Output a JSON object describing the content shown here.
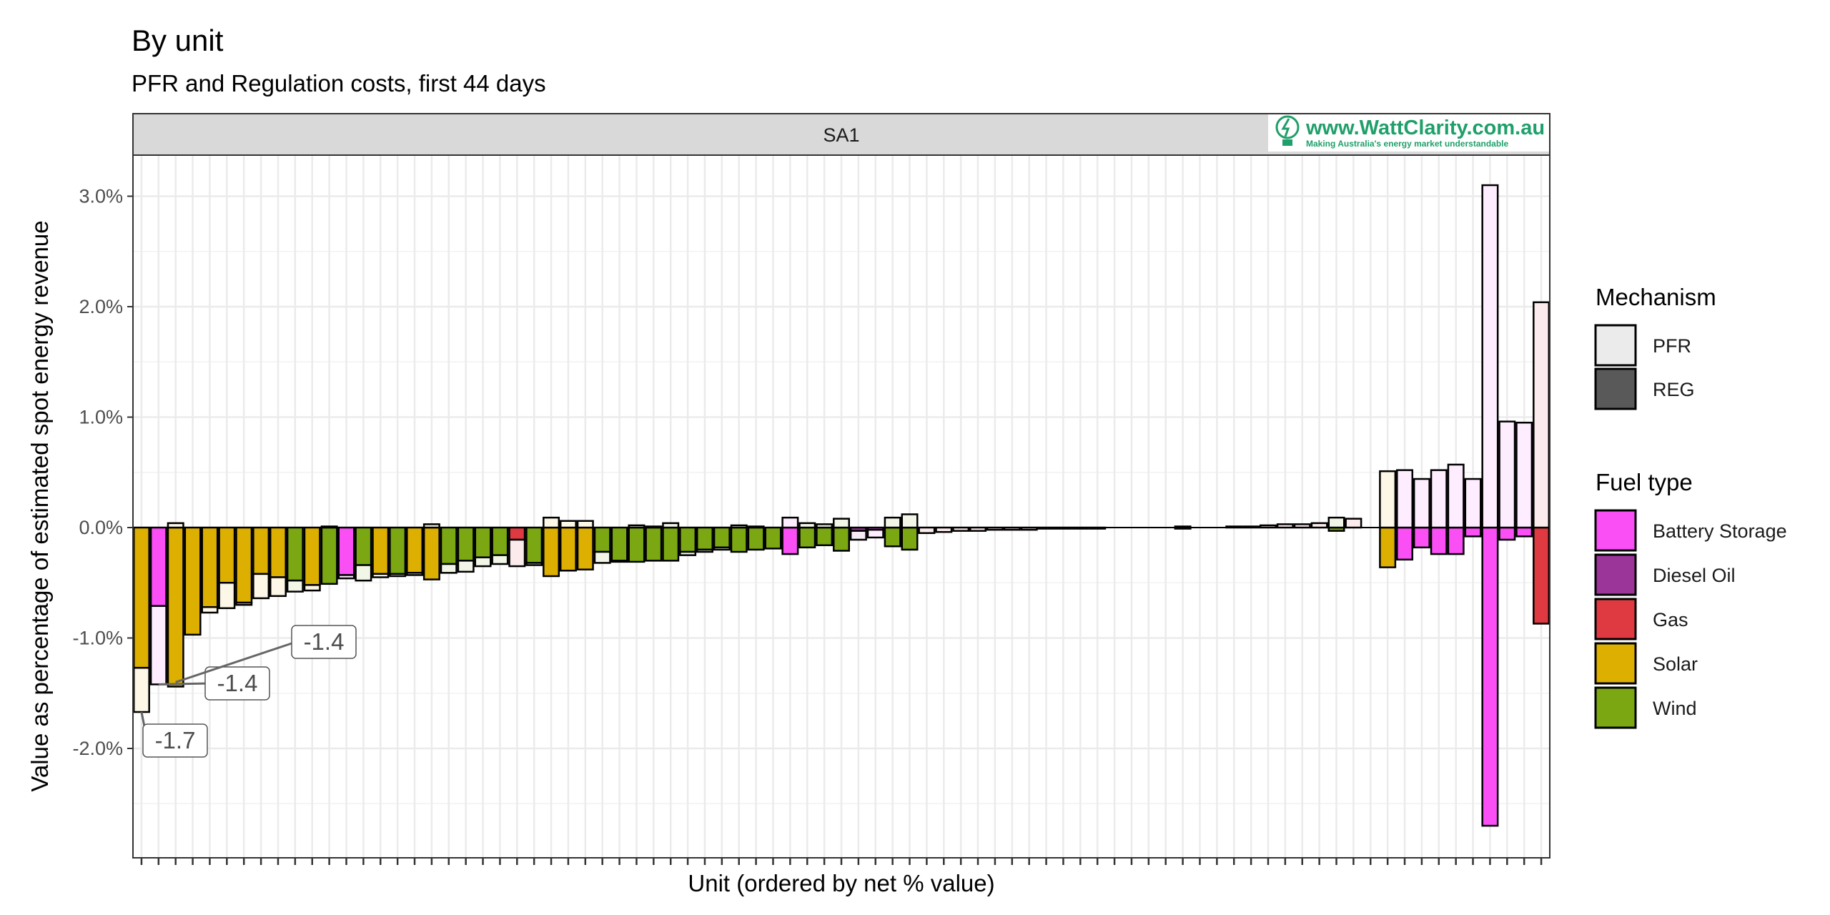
{
  "header": {
    "title": "By unit",
    "subtitle": "PFR and Regulation costs, first 44 days"
  },
  "facet": {
    "label": "SA1"
  },
  "logo": {
    "url_text": "www.WattClarity.com.au",
    "tagline": "Making Australia's energy market understandable"
  },
  "legend": {
    "mechanism_title": "Mechanism",
    "mechanism_items": [
      {
        "label": "PFR",
        "color": "#ebebeb"
      },
      {
        "label": "REG",
        "color": "#595959"
      }
    ],
    "fuel_title": "Fuel type",
    "fuel_items": [
      {
        "key": "battery",
        "label": "Battery Storage",
        "color": "#f94ff5"
      },
      {
        "key": "diesel",
        "label": "Diesel Oil",
        "color": "#9c3599"
      },
      {
        "key": "gas",
        "label": "Gas",
        "color": "#df3a41"
      },
      {
        "key": "solar",
        "label": "Solar",
        "color": "#dcaf00"
      },
      {
        "key": "wind",
        "label": "Wind",
        "color": "#7ba712"
      }
    ]
  },
  "chart_data": {
    "type": "bar",
    "title": "By unit",
    "subtitle": "PFR and Regulation costs, first 44 days",
    "facet": "SA1",
    "xlabel": "Unit (ordered by net % value)",
    "ylabel": "Value as percentage of estimated spot energy revenue",
    "ylim": [
      -3.0,
      3.3
    ],
    "y_ticks": [
      3.0,
      2.0,
      1.0,
      0.0,
      -1.0,
      -2.0
    ],
    "y_tick_labels": [
      "3.0%",
      "2.0%",
      "1.0%",
      "0.0%",
      "-1.0%",
      "-2.0%"
    ],
    "grid": true,
    "legend_position": "right",
    "units": [
      {
        "fuel": "solar",
        "pfr": -0.4,
        "reg": -1.27
      },
      {
        "fuel": "battery",
        "pfr": -0.71,
        "reg": -0.71
      },
      {
        "fuel": "solar",
        "pfr": 0.04,
        "reg": -1.44
      },
      {
        "fuel": "solar",
        "pfr": 0.0,
        "reg": -0.97
      },
      {
        "fuel": "solar",
        "pfr": -0.05,
        "reg": -0.72
      },
      {
        "fuel": "solar",
        "pfr": -0.23,
        "reg": -0.5
      },
      {
        "fuel": "solar",
        "pfr": -0.02,
        "reg": -0.68
      },
      {
        "fuel": "solar",
        "pfr": -0.22,
        "reg": -0.42
      },
      {
        "fuel": "solar",
        "pfr": -0.17,
        "reg": -0.45
      },
      {
        "fuel": "wind",
        "pfr": -0.1,
        "reg": -0.48
      },
      {
        "fuel": "solar",
        "pfr": -0.05,
        "reg": -0.52
      },
      {
        "fuel": "wind",
        "pfr": 0.01,
        "reg": -0.51
      },
      {
        "fuel": "battery",
        "pfr": -0.03,
        "reg": -0.43
      },
      {
        "fuel": "wind",
        "pfr": -0.14,
        "reg": -0.34
      },
      {
        "fuel": "solar",
        "pfr": -0.03,
        "reg": -0.42
      },
      {
        "fuel": "wind",
        "pfr": -0.02,
        "reg": -0.42
      },
      {
        "fuel": "solar",
        "pfr": -0.02,
        "reg": -0.41
      },
      {
        "fuel": "solar",
        "pfr": 0.03,
        "reg": -0.47
      },
      {
        "fuel": "wind",
        "pfr": -0.08,
        "reg": -0.33
      },
      {
        "fuel": "wind",
        "pfr": -0.1,
        "reg": -0.3
      },
      {
        "fuel": "wind",
        "pfr": -0.08,
        "reg": -0.27
      },
      {
        "fuel": "wind",
        "pfr": -0.08,
        "reg": -0.25
      },
      {
        "fuel": "gas",
        "pfr": -0.24,
        "reg": -0.11
      },
      {
        "fuel": "wind",
        "pfr": -0.02,
        "reg": -0.32
      },
      {
        "fuel": "solar",
        "pfr": 0.09,
        "reg": -0.44
      },
      {
        "fuel": "solar",
        "pfr": 0.06,
        "reg": -0.39
      },
      {
        "fuel": "solar",
        "pfr": 0.06,
        "reg": -0.38
      },
      {
        "fuel": "wind",
        "pfr": -0.1,
        "reg": -0.22
      },
      {
        "fuel": "wind",
        "pfr": -0.01,
        "reg": -0.3
      },
      {
        "fuel": "wind",
        "pfr": 0.02,
        "reg": -0.31
      },
      {
        "fuel": "wind",
        "pfr": 0.01,
        "reg": -0.3
      },
      {
        "fuel": "wind",
        "pfr": 0.04,
        "reg": -0.3
      },
      {
        "fuel": "wind",
        "pfr": -0.03,
        "reg": -0.22
      },
      {
        "fuel": "wind",
        "pfr": -0.02,
        "reg": -0.2
      },
      {
        "fuel": "wind",
        "pfr": -0.02,
        "reg": -0.18
      },
      {
        "fuel": "wind",
        "pfr": 0.02,
        "reg": -0.22
      },
      {
        "fuel": "wind",
        "pfr": 0.01,
        "reg": -0.2
      },
      {
        "fuel": "wind",
        "pfr": 0.0,
        "reg": -0.19
      },
      {
        "fuel": "battery",
        "pfr": 0.09,
        "reg": -0.24
      },
      {
        "fuel": "wind",
        "pfr": 0.04,
        "reg": -0.18
      },
      {
        "fuel": "wind",
        "pfr": 0.03,
        "reg": -0.16
      },
      {
        "fuel": "wind",
        "pfr": 0.08,
        "reg": -0.21
      },
      {
        "fuel": "diesel",
        "pfr": -0.08,
        "reg": -0.03
      },
      {
        "fuel": "battery",
        "pfr": -0.07,
        "reg": -0.02
      },
      {
        "fuel": "wind",
        "pfr": 0.09,
        "reg": -0.17
      },
      {
        "fuel": "wind",
        "pfr": 0.12,
        "reg": -0.2
      },
      {
        "fuel": "gas",
        "pfr": -0.05,
        "reg": 0.0
      },
      {
        "fuel": "gas",
        "pfr": -0.04,
        "reg": 0.0
      },
      {
        "fuel": "gas",
        "pfr": -0.03,
        "reg": 0.0
      },
      {
        "fuel": "gas",
        "pfr": -0.03,
        "reg": 0.0
      },
      {
        "fuel": "gas",
        "pfr": -0.02,
        "reg": 0.0
      },
      {
        "fuel": "gas",
        "pfr": -0.02,
        "reg": 0.0
      },
      {
        "fuel": "gas",
        "pfr": -0.02,
        "reg": 0.0
      },
      {
        "fuel": "gas",
        "pfr": -0.01,
        "reg": 0.0
      },
      {
        "fuel": "gas",
        "pfr": -0.01,
        "reg": 0.0
      },
      {
        "fuel": "gas",
        "pfr": -0.01,
        "reg": 0.0
      },
      {
        "fuel": "gas",
        "pfr": -0.01,
        "reg": 0.0
      },
      {
        "fuel": "gas",
        "pfr": 0.0,
        "reg": 0.0
      },
      {
        "fuel": "gas",
        "pfr": 0.0,
        "reg": 0.0
      },
      {
        "fuel": "gas",
        "pfr": 0.0,
        "reg": 0.0
      },
      {
        "fuel": "gas",
        "pfr": 0.0,
        "reg": 0.0
      },
      {
        "fuel": "diesel",
        "pfr": 0.01,
        "reg": -0.01
      },
      {
        "fuel": "gas",
        "pfr": 0.0,
        "reg": 0.0
      },
      {
        "fuel": "gas",
        "pfr": 0.0,
        "reg": 0.0
      },
      {
        "fuel": "gas",
        "pfr": 0.01,
        "reg": 0.0
      },
      {
        "fuel": "gas",
        "pfr": 0.01,
        "reg": 0.0
      },
      {
        "fuel": "gas",
        "pfr": 0.02,
        "reg": 0.0
      },
      {
        "fuel": "gas",
        "pfr": 0.03,
        "reg": 0.0
      },
      {
        "fuel": "gas",
        "pfr": 0.03,
        "reg": 0.0
      },
      {
        "fuel": "gas",
        "pfr": 0.04,
        "reg": 0.0
      },
      {
        "fuel": "wind",
        "pfr": 0.09,
        "reg": -0.03
      },
      {
        "fuel": "gas",
        "pfr": 0.08,
        "reg": 0.0
      },
      {
        "fuel": "gas",
        "pfr": 0.0,
        "reg": 0.0
      },
      {
        "fuel": "solar",
        "pfr": 0.51,
        "reg": -0.36
      },
      {
        "fuel": "battery",
        "pfr": 0.52,
        "reg": -0.29
      },
      {
        "fuel": "battery",
        "pfr": 0.44,
        "reg": -0.18
      },
      {
        "fuel": "battery",
        "pfr": 0.52,
        "reg": -0.24
      },
      {
        "fuel": "battery",
        "pfr": 0.57,
        "reg": -0.24
      },
      {
        "fuel": "battery",
        "pfr": 0.44,
        "reg": -0.08
      },
      {
        "fuel": "battery",
        "pfr": 3.1,
        "reg": -2.7
      },
      {
        "fuel": "battery",
        "pfr": 0.96,
        "reg": -0.11
      },
      {
        "fuel": "battery",
        "pfr": 0.95,
        "reg": -0.08
      },
      {
        "fuel": "gas",
        "pfr": 2.04,
        "reg": -0.87
      }
    ],
    "annotations": [
      {
        "label": "-1.7",
        "unit_index": 0,
        "value": -1.67
      },
      {
        "label": "-1.4",
        "unit_index": 1,
        "value": -1.42
      },
      {
        "label": "-1.4",
        "unit_index": 2,
        "value": -1.4
      }
    ]
  }
}
